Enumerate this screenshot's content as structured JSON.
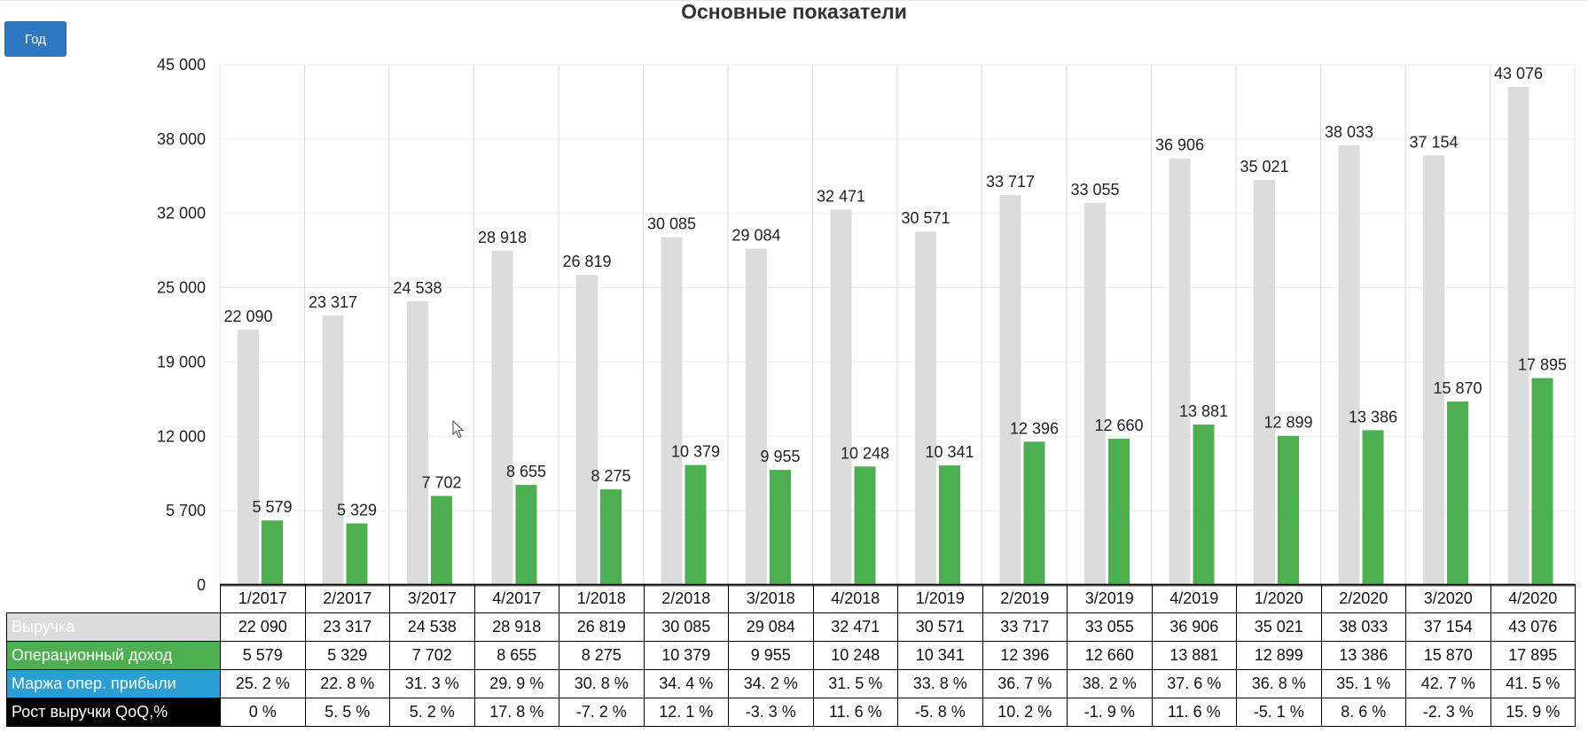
{
  "title": "Основные показатели",
  "period_button": "Год",
  "colors": {
    "revenue": "#dcdcdc",
    "operating_income": "#4caf50",
    "margin": "#2a9fd6",
    "growth": "#000000",
    "button": "#2f78c0"
  },
  "chart_data": {
    "type": "bar",
    "title": "Основные показатели",
    "xlabel": "",
    "ylabel": "",
    "ylim": [
      0,
      45000
    ],
    "yticks": [
      "0",
      "5 700",
      "12 000",
      "19 000",
      "25 000",
      "32 000",
      "38 000",
      "45 000"
    ],
    "categories": [
      "1/2017",
      "2/2017",
      "3/2017",
      "4/2017",
      "1/2018",
      "2/2018",
      "3/2018",
      "4/2018",
      "1/2019",
      "2/2019",
      "3/2019",
      "4/2019",
      "1/2020",
      "2/2020",
      "3/2020",
      "4/2020"
    ],
    "series": [
      {
        "name": "Выручка",
        "values": [
          22090,
          23317,
          24538,
          28918,
          26819,
          30085,
          29084,
          32471,
          30571,
          33717,
          33055,
          36906,
          35021,
          38033,
          37154,
          43076
        ],
        "labels": [
          "22 090",
          "23 317",
          "24 538",
          "28 918",
          "26 819",
          "30 085",
          "29 084",
          "32 471",
          "30 571",
          "33 717",
          "33 055",
          "36 906",
          "35 021",
          "38 033",
          "37 154",
          "43 076"
        ]
      },
      {
        "name": "Операционный доход",
        "values": [
          5579,
          5329,
          7702,
          8655,
          8275,
          10379,
          9955,
          10248,
          10341,
          12396,
          12660,
          13881,
          12899,
          13386,
          15870,
          17895
        ],
        "labels": [
          "5 579",
          "5 329",
          "7 702",
          "8 655",
          "8 275",
          "10 379",
          "9 955",
          "10 248",
          "10 341",
          "12 396",
          "12 660",
          "13 881",
          "12 899",
          "13 386",
          "15 870",
          "17 895"
        ]
      }
    ],
    "grid": true,
    "legend": "table-below"
  },
  "table": {
    "rows": [
      {
        "label": "Выручка",
        "cells": [
          "22 090",
          "23 317",
          "24 538",
          "28 918",
          "26 819",
          "30 085",
          "29 084",
          "32 471",
          "30 571",
          "33 717",
          "33 055",
          "36 906",
          "35 021",
          "38 033",
          "37 154",
          "43 076"
        ]
      },
      {
        "label": "Операционный доход",
        "cells": [
          "5 579",
          "5 329",
          "7 702",
          "8 655",
          "8 275",
          "10 379",
          "9 955",
          "10 248",
          "10 341",
          "12 396",
          "12 660",
          "13 881",
          "12 899",
          "13 386",
          "15 870",
          "17 895"
        ]
      },
      {
        "label": "Маржа опер. прибыли",
        "cells": [
          "25. 2 %",
          "22. 8 %",
          "31. 3 %",
          "29. 9 %",
          "30. 8 %",
          "34. 4 %",
          "34. 2 %",
          "31. 5 %",
          "33. 8 %",
          "36. 7 %",
          "38. 2 %",
          "37. 6 %",
          "36. 8 %",
          "35. 1 %",
          "42. 7 %",
          "41. 5 %"
        ]
      },
      {
        "label": "Рост выручки QoQ,%",
        "cells": [
          "0 %",
          "5. 5 %",
          "5. 2 %",
          "17. 8 %",
          "-7. 2 %",
          "12. 1 %",
          "-3. 3 %",
          "11. 6 %",
          "-5. 8 %",
          "10. 2 %",
          "-1. 9 %",
          "11. 6 %",
          "-5. 1 %",
          "8. 6 %",
          "-2. 3 %",
          "15. 9 %"
        ]
      }
    ]
  }
}
